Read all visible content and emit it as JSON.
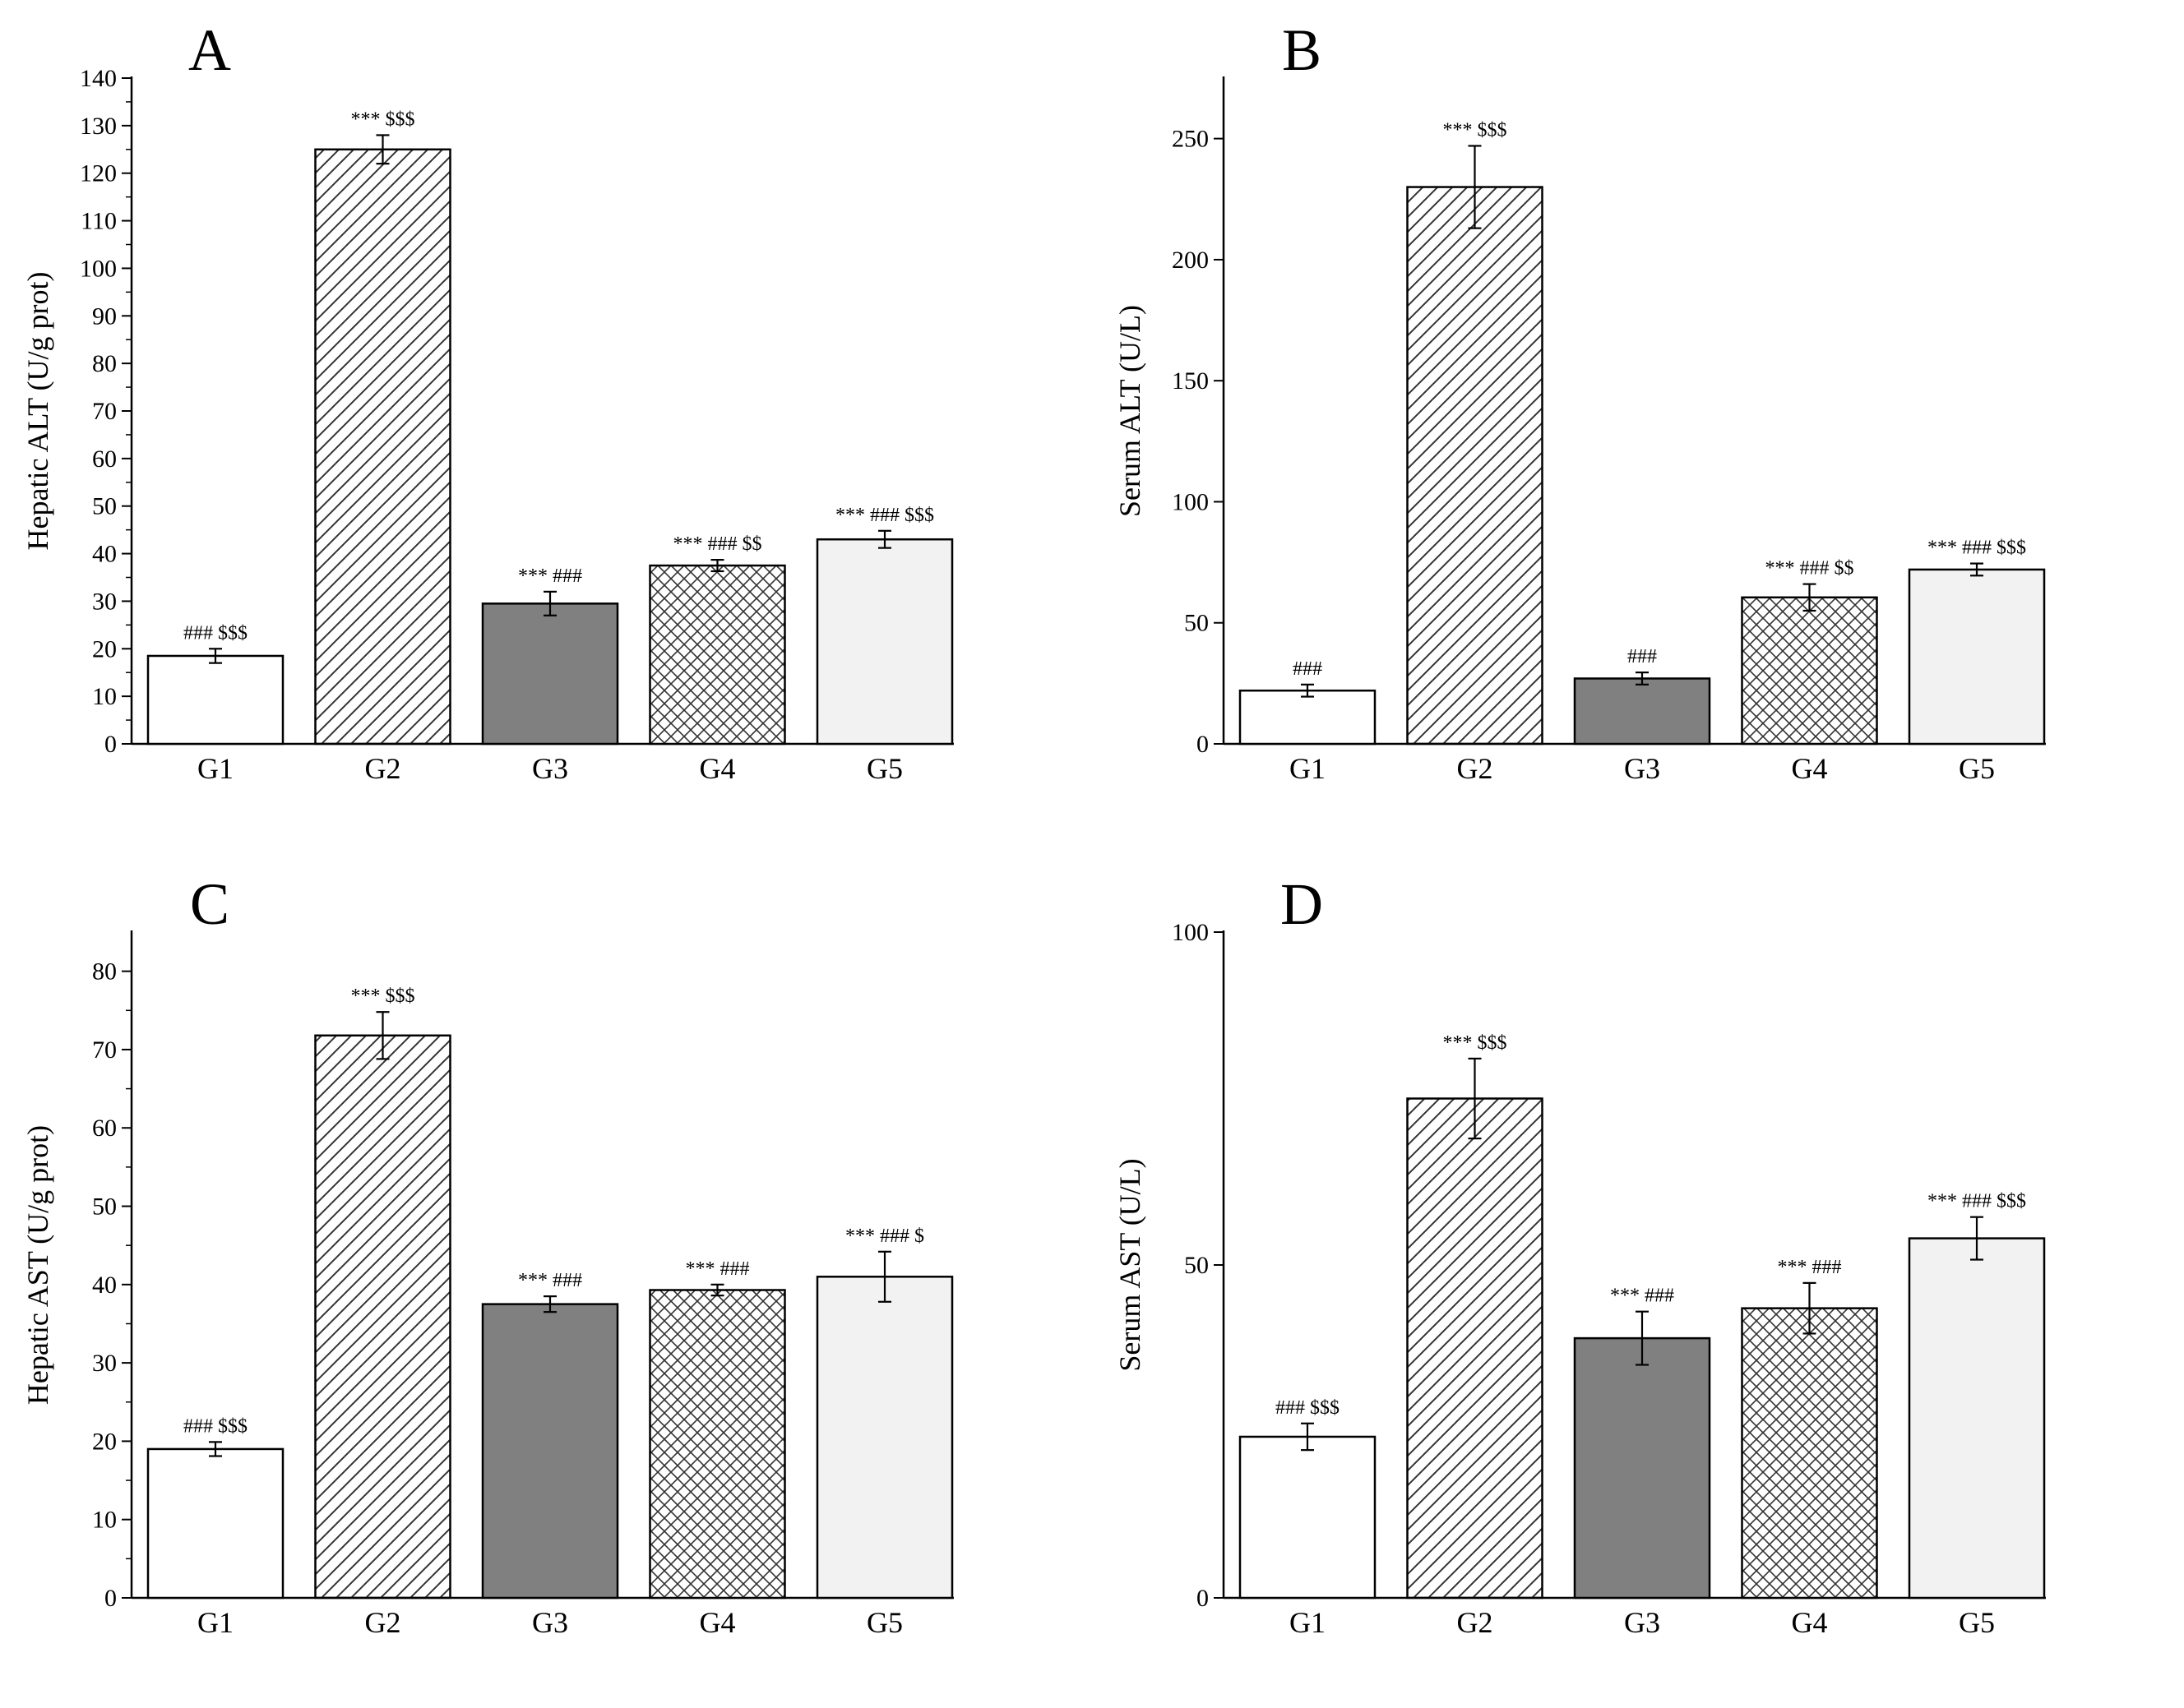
{
  "colors": {
    "axis": "#000000",
    "fill_white": "#ffffff",
    "fill_dark": "#808080",
    "fill_light": "#f2f2f2",
    "hatch": "#333333"
  },
  "chart_data": [
    {
      "panel_label": "A",
      "type": "bar",
      "categories": [
        "G1",
        "G2",
        "G3",
        "G4",
        "G5"
      ],
      "values": [
        18.5,
        125,
        29.5,
        37.5,
        43
      ],
      "errors": [
        1.5,
        3,
        2.5,
        1.2,
        1.8
      ],
      "annotations": [
        "### $$$",
        "*** $$$",
        "*** ###",
        "*** ### $$",
        "*** ### $$$"
      ],
      "patterns": [
        "white",
        "diag",
        "dark",
        "cross",
        "light"
      ],
      "ylabel": "Hepatic ALT  (U/g prot)",
      "ylim": [
        0,
        140
      ],
      "yticks": [
        0,
        10,
        20,
        30,
        40,
        50,
        60,
        70,
        80,
        90,
        100,
        110,
        120,
        130,
        140
      ],
      "minor_ticks": true
    },
    {
      "panel_label": "B",
      "type": "bar",
      "categories": [
        "G1",
        "G2",
        "G3",
        "G4",
        "G5"
      ],
      "values": [
        22,
        230,
        27,
        60.5,
        72
      ],
      "errors": [
        2.5,
        17,
        2.5,
        5.5,
        2.5
      ],
      "annotations": [
        "###",
        "*** $$$",
        "###",
        "*** ### $$",
        "*** ### $$$"
      ],
      "patterns": [
        "white",
        "diag",
        "dark",
        "cross",
        "light"
      ],
      "ylabel": "Serum ALT  (U/L)",
      "ylim": [
        0,
        275
      ],
      "yticks": [
        0,
        50,
        100,
        150,
        200,
        250
      ],
      "minor_ticks": false
    },
    {
      "panel_label": "C",
      "type": "bar",
      "categories": [
        "G1",
        "G2",
        "G3",
        "G4",
        "G5"
      ],
      "values": [
        19,
        71.8,
        37.5,
        39.3,
        41
      ],
      "errors": [
        0.9,
        3,
        1,
        0.7,
        3.2
      ],
      "annotations": [
        "### $$$",
        "*** $$$",
        "*** ###",
        "*** ###",
        "*** ### $"
      ],
      "patterns": [
        "white",
        "diag",
        "dark",
        "cross",
        "light"
      ],
      "ylabel": "Hepatic AST  (U/g prot)",
      "ylim": [
        0,
        85
      ],
      "yticks": [
        0,
        10,
        20,
        30,
        40,
        50,
        60,
        70,
        80
      ],
      "minor_ticks": true
    },
    {
      "panel_label": "D",
      "type": "bar",
      "categories": [
        "G1",
        "G2",
        "G3",
        "G4",
        "G5"
      ],
      "values": [
        24.2,
        75,
        39,
        43.5,
        54
      ],
      "errors": [
        2,
        6,
        4,
        3.8,
        3.2
      ],
      "annotations": [
        "### $$$",
        "*** $$$",
        "*** ###",
        "*** ###",
        "*** ### $$$"
      ],
      "patterns": [
        "white",
        "diag",
        "dark",
        "cross",
        "light"
      ],
      "ylabel": "Serum AST  (U/L)",
      "ylim": [
        0,
        100
      ],
      "yticks": [
        0,
        50,
        100
      ],
      "minor_ticks": false
    }
  ]
}
